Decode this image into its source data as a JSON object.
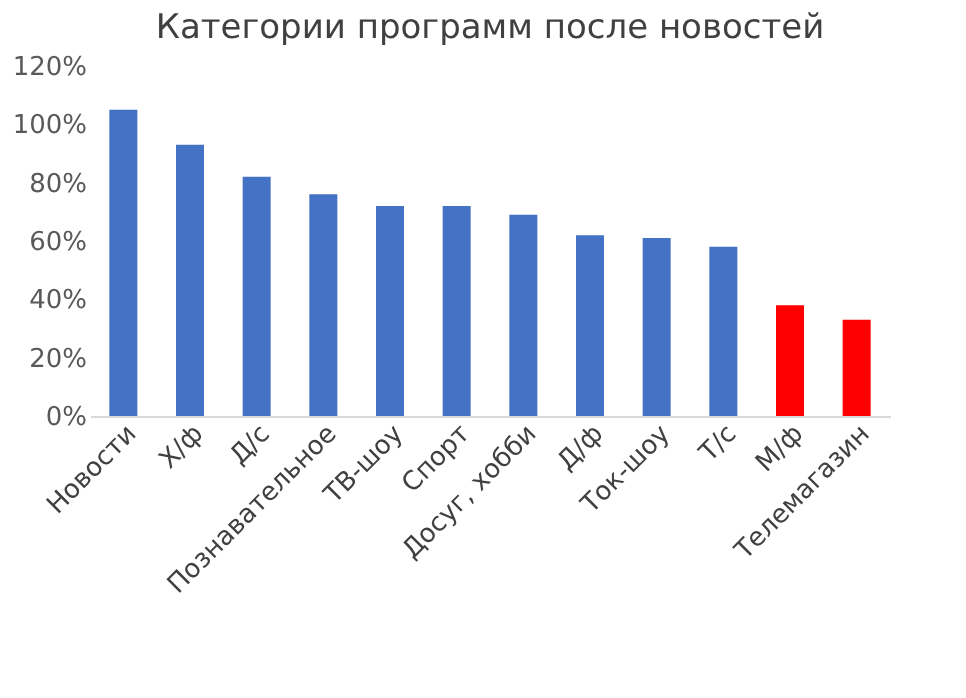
{
  "chart_data": {
    "type": "bar",
    "title": "Категории программ после новостей",
    "categories": [
      "Новости",
      "Х/ф",
      "Д/с",
      "Познавательное",
      "ТВ-шоу",
      "Спорт",
      "Досуг, хобби",
      "Д/ф",
      "Ток-шоу",
      "Т/с",
      "М/ф",
      "Телемагазин"
    ],
    "values": [
      105,
      93,
      82,
      76,
      72,
      72,
      69,
      62,
      61,
      58,
      38,
      33
    ],
    "colors": [
      "#4472c4",
      "#4472c4",
      "#4472c4",
      "#4472c4",
      "#4472c4",
      "#4472c4",
      "#4472c4",
      "#4472c4",
      "#4472c4",
      "#4472c4",
      "#ff0000",
      "#ff0000"
    ],
    "ylim": [
      0,
      120
    ],
    "yticks": [
      {
        "value": 0,
        "label": "0%"
      },
      {
        "value": 20,
        "label": "20%"
      },
      {
        "value": 40,
        "label": "40%"
      },
      {
        "value": 60,
        "label": "60%"
      },
      {
        "value": 80,
        "label": "80%"
      },
      {
        "value": 100,
        "label": "100%"
      },
      {
        "value": 120,
        "label": "120%"
      }
    ]
  }
}
